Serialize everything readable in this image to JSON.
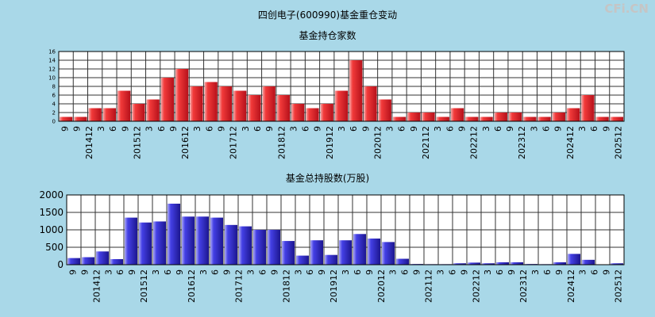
{
  "page": {
    "title": "四创电子(600990)基金重仓变动",
    "watermark": "CFi.CN"
  },
  "colors": {
    "background": "#a9d8e8",
    "plot_bg": "#ffffff",
    "grid": "#333333",
    "top_bar": "#e0242a",
    "bottom_bar": "#3b35d8"
  },
  "chart_data": [
    {
      "type": "bar",
      "title": "基金持仓家数",
      "ylim": [
        0,
        16
      ],
      "yticks": [
        0,
        2,
        4,
        6,
        8,
        10,
        12,
        14,
        16
      ],
      "x_tick_labels": [
        "9",
        "9",
        "201412",
        "3",
        "6",
        "9",
        "201512",
        "3",
        "6",
        "9",
        "201612",
        "3",
        "6",
        "9",
        "201712",
        "3",
        "6",
        "9",
        "201812",
        "3",
        "6",
        "9",
        "201912",
        "3",
        "6",
        "9",
        "202012",
        "3",
        "6",
        "9",
        "202112",
        "3",
        "6",
        "9",
        "202212",
        "3",
        "6",
        "9",
        "202312",
        "3",
        "6",
        "9",
        "202412",
        "3",
        "6",
        "9",
        "202512"
      ],
      "values": [
        1,
        1,
        3,
        3,
        7,
        4,
        5,
        10,
        12,
        8,
        9,
        8,
        7,
        6,
        8,
        6,
        4,
        3,
        4,
        7,
        14,
        8,
        5,
        1,
        2,
        2,
        1,
        3,
        1,
        1,
        2,
        2,
        1,
        1,
        2,
        3,
        6,
        1,
        1
      ]
    },
    {
      "type": "bar",
      "title": "基金总持股数(万股)",
      "ylim": [
        0,
        2000
      ],
      "yticks": [
        0,
        500,
        1000,
        1500,
        2000
      ],
      "x_tick_labels": [
        "9",
        "9",
        "201412",
        "3",
        "6",
        "9",
        "201512",
        "3",
        "6",
        "9",
        "201612",
        "3",
        "6",
        "9",
        "201712",
        "3",
        "6",
        "9",
        "201812",
        "3",
        "6",
        "9",
        "201912",
        "3",
        "6",
        "9",
        "202012",
        "3",
        "6",
        "9",
        "202112",
        "3",
        "6",
        "9",
        "202212",
        "3",
        "6",
        "9",
        "202312",
        "3",
        "6",
        "9",
        "202412",
        "3",
        "6",
        "9",
        "202512"
      ],
      "values": [
        190,
        215,
        380,
        160,
        1350,
        1210,
        1240,
        1750,
        1380,
        1380,
        1350,
        1140,
        1100,
        1000,
        1000,
        680,
        260,
        700,
        280,
        700,
        880,
        750,
        650,
        170,
        20,
        15,
        15,
        40,
        60,
        40,
        70,
        70,
        20,
        15,
        70,
        310,
        140,
        10,
        40
      ]
    }
  ]
}
